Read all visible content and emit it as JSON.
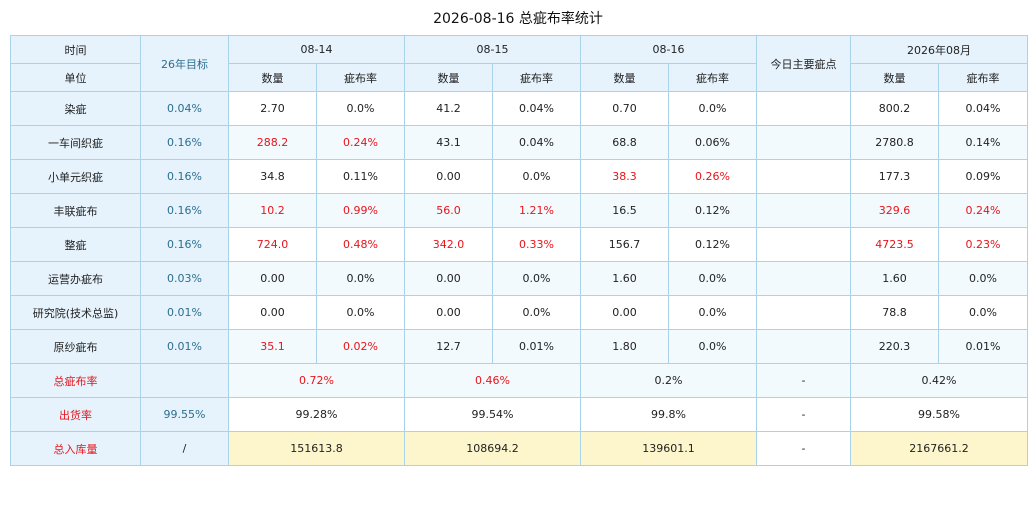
{
  "title": "2026-08-16 总疵布率统计",
  "header": {
    "time_label": "时间",
    "unit_label": "单位",
    "target_label": "26年目标",
    "dates": [
      "08-14",
      "08-15",
      "08-16"
    ],
    "major_defect_label": "今日主要疵点",
    "month_label": "2026年08月",
    "qty_label": "数量",
    "rate_label": "疵布率"
  },
  "rows": [
    {
      "unit": "染疵",
      "target": "0.04%",
      "d1_qty": "2.70",
      "d1_rate": "0.0%",
      "d2_qty": "41.2",
      "d2_rate": "0.04%",
      "d3_qty": "0.70",
      "d3_rate": "0.0%",
      "defect": "",
      "m_qty": "800.2",
      "m_rate": "0.04%"
    },
    {
      "unit": "一车间织疵",
      "target": "0.16%",
      "d1_qty": "288.2",
      "d1_rate": "0.24%",
      "d2_qty": "43.1",
      "d2_rate": "0.04%",
      "d3_qty": "68.8",
      "d3_rate": "0.06%",
      "defect": "",
      "m_qty": "2780.8",
      "m_rate": "0.14%"
    },
    {
      "unit": "小单元织疵",
      "target": "0.16%",
      "d1_qty": "34.8",
      "d1_rate": "0.11%",
      "d2_qty": "0.00",
      "d2_rate": "0.0%",
      "d3_qty": "38.3",
      "d3_rate": "0.26%",
      "defect": "",
      "m_qty": "177.3",
      "m_rate": "0.09%"
    },
    {
      "unit": "丰联疵布",
      "target": "0.16%",
      "d1_qty": "10.2",
      "d1_rate": "0.99%",
      "d2_qty": "56.0",
      "d2_rate": "1.21%",
      "d3_qty": "16.5",
      "d3_rate": "0.12%",
      "defect": "",
      "m_qty": "329.6",
      "m_rate": "0.24%"
    },
    {
      "unit": "整疵",
      "target": "0.16%",
      "d1_qty": "724.0",
      "d1_rate": "0.48%",
      "d2_qty": "342.0",
      "d2_rate": "0.33%",
      "d3_qty": "156.7",
      "d3_rate": "0.12%",
      "defect": "",
      "m_qty": "4723.5",
      "m_rate": "0.23%"
    },
    {
      "unit": "运营办疵布",
      "target": "0.03%",
      "d1_qty": "0.00",
      "d1_rate": "0.0%",
      "d2_qty": "0.00",
      "d2_rate": "0.0%",
      "d3_qty": "1.60",
      "d3_rate": "0.0%",
      "defect": "",
      "m_qty": "1.60",
      "m_rate": "0.0%"
    },
    {
      "unit": "研究院(技术总监)",
      "target": "0.01%",
      "d1_qty": "0.00",
      "d1_rate": "0.0%",
      "d2_qty": "0.00",
      "d2_rate": "0.0%",
      "d3_qty": "0.00",
      "d3_rate": "0.0%",
      "defect": "",
      "m_qty": "78.8",
      "m_rate": "0.0%"
    },
    {
      "unit": "原纱疵布",
      "target": "0.01%",
      "d1_qty": "35.1",
      "d1_rate": "0.02%",
      "d2_qty": "12.7",
      "d2_rate": "0.01%",
      "d3_qty": "1.80",
      "d3_rate": "0.0%",
      "defect": "",
      "m_qty": "220.3",
      "m_rate": "0.01%"
    }
  ],
  "summary": {
    "total_rate": {
      "label": "总疵布率",
      "target": "",
      "d1": "0.72%",
      "d2": "0.46%",
      "d3": "0.2%",
      "defect": "-",
      "month": "0.42%"
    },
    "shipping_rate": {
      "label": "出货率",
      "target": "99.55%",
      "d1": "99.28%",
      "d2": "99.54%",
      "d3": "99.8%",
      "defect": "-",
      "month": "99.58%"
    },
    "total_stock": {
      "label": "总入库量",
      "target": "/",
      "d1": "151613.8",
      "d2": "108694.2",
      "d3": "139601.1",
      "defect": "-",
      "month": "2167661.2"
    }
  },
  "colors": {
    "highlight_red": "#e8141b",
    "header_bg": "#e6f3fc",
    "border": "#a9d3e8",
    "stock_bg": "#fdf5cc"
  }
}
